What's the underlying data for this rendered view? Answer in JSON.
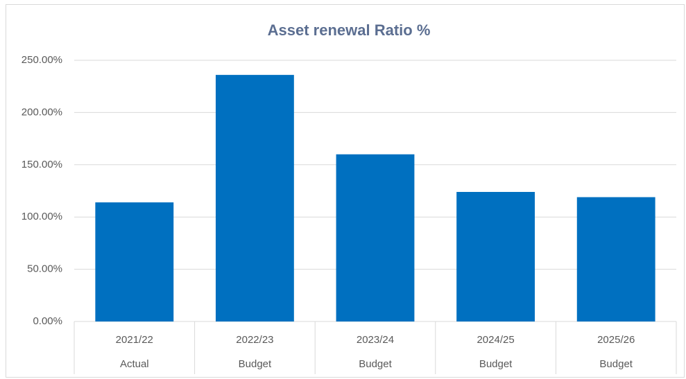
{
  "chart_data": {
    "type": "bar",
    "title": "Asset renewal Ratio %",
    "categories": [
      "2021/22",
      "2022/23",
      "2023/24",
      "2024/25",
      "2025/26"
    ],
    "subcategories": [
      "Actual",
      "Budget",
      "Budget",
      "Budget",
      "Budget"
    ],
    "values": [
      114,
      236,
      160,
      124,
      119
    ],
    "color": "#0070c0",
    "ylim": [
      0,
      250
    ],
    "yticks": [
      {
        "value": 0,
        "label": "0.00%"
      },
      {
        "value": 50,
        "label": "50.00%"
      },
      {
        "value": 100,
        "label": "100.00%"
      },
      {
        "value": 150,
        "label": "150.00%"
      },
      {
        "value": 200,
        "label": "200.00%"
      },
      {
        "value": 250,
        "label": "250.00%"
      }
    ],
    "grid": true
  }
}
